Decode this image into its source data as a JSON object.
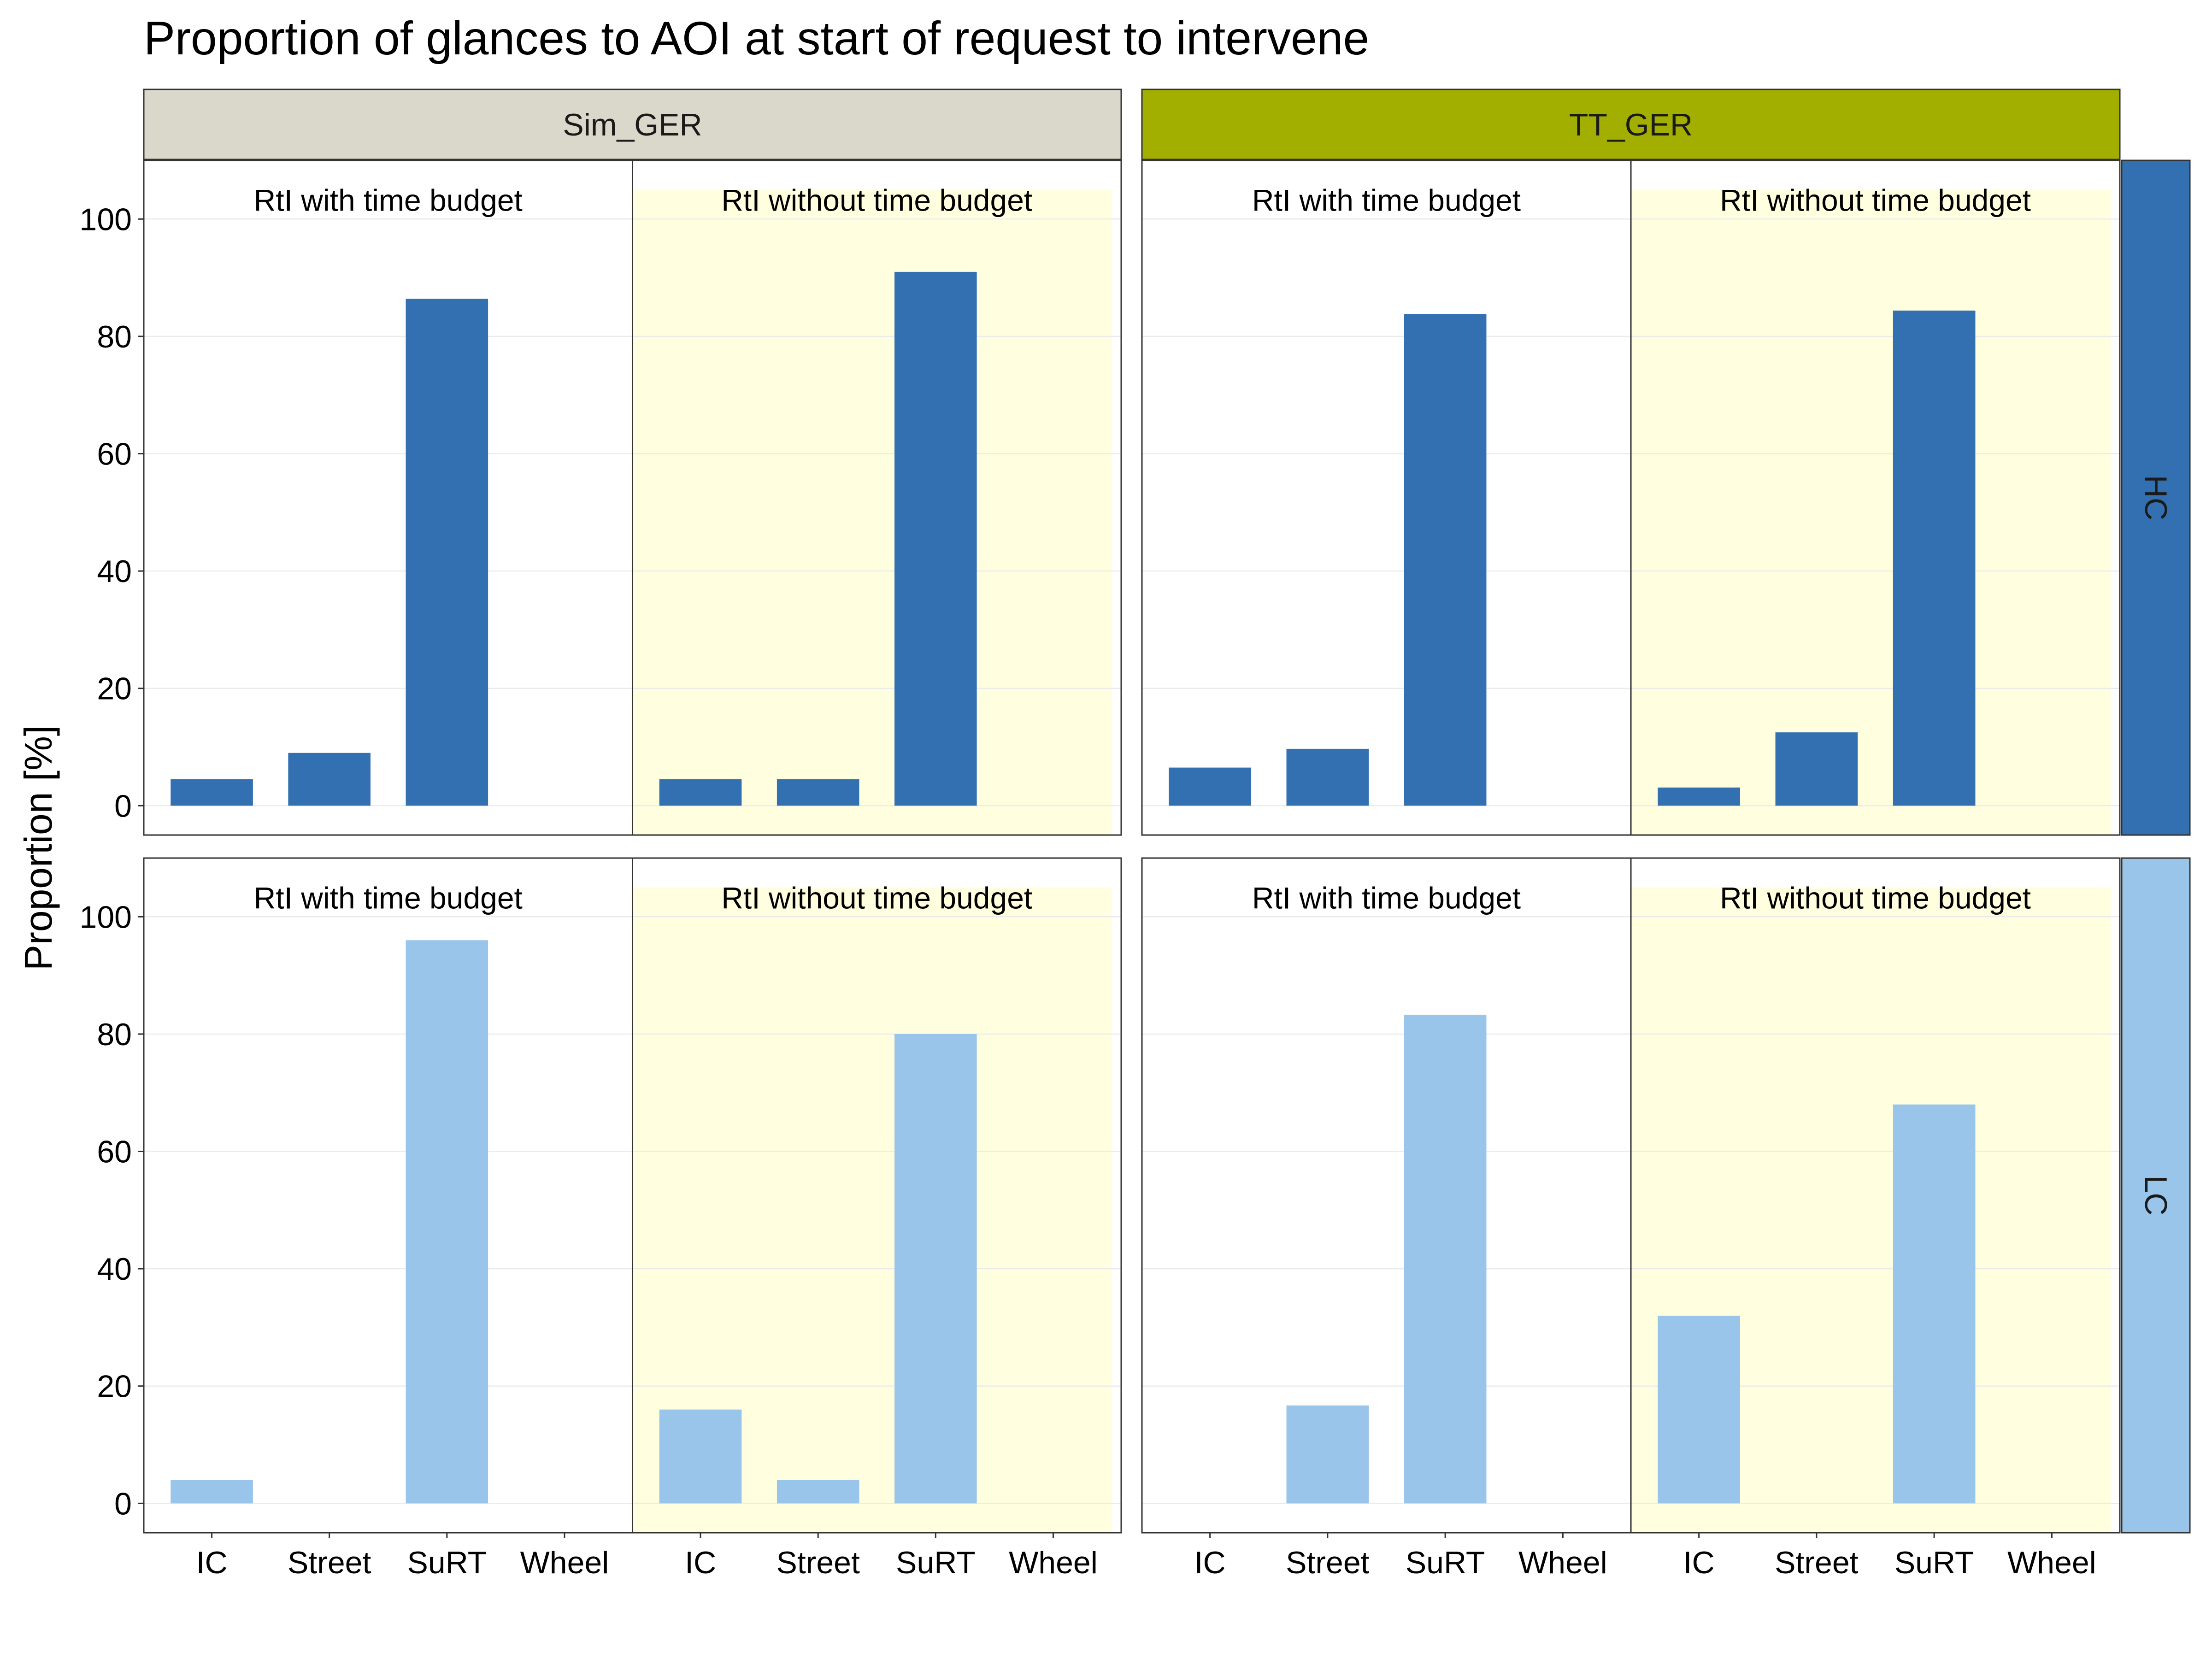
{
  "chart_data": {
    "type": "bar",
    "title": "Proportion of glances to AOI at start of request to intervene",
    "xlabel": "",
    "ylabel": "Proportion [%]",
    "ylim": [
      -5,
      110
    ],
    "yticks": [
      0,
      20,
      40,
      60,
      80,
      100
    ],
    "categories": [
      "IC",
      "Street",
      "SuRT",
      "Wheel"
    ],
    "column_facets": [
      {
        "label": "Sim_GER",
        "color": "#d9d8cb"
      },
      {
        "label": "TT_GER",
        "color": "#a2ae00"
      }
    ],
    "row_facets": [
      {
        "label": "HC",
        "color": "#3370b2"
      },
      {
        "label": "LC",
        "color": "#9ac5ea"
      }
    ],
    "subgroups": [
      "RtI with time budget",
      "RtI without time budget"
    ],
    "highlight_color": "#ffffdf",
    "panels": [
      {
        "row": "HC",
        "column": "Sim_GER",
        "series": [
          {
            "subgroup": "RtI with time budget",
            "values": [
              4.5,
              9,
              86.4,
              0
            ]
          },
          {
            "subgroup": "RtI without time budget",
            "values": [
              4.5,
              4.5,
              91,
              0
            ]
          }
        ]
      },
      {
        "row": "HC",
        "column": "TT_GER",
        "series": [
          {
            "subgroup": "RtI with time budget",
            "values": [
              6.5,
              9.7,
              83.8,
              0
            ]
          },
          {
            "subgroup": "RtI without time budget",
            "values": [
              3.1,
              12.5,
              84.4,
              0
            ]
          }
        ]
      },
      {
        "row": "LC",
        "column": "Sim_GER",
        "series": [
          {
            "subgroup": "RtI with time budget",
            "values": [
              4,
              0,
              96,
              0
            ]
          },
          {
            "subgroup": "RtI without time budget",
            "values": [
              16,
              4,
              80,
              0
            ]
          }
        ]
      },
      {
        "row": "LC",
        "column": "TT_GER",
        "series": [
          {
            "subgroup": "RtI with time budget",
            "values": [
              0,
              16.7,
              83.3,
              0
            ]
          },
          {
            "subgroup": "RtI without time budget",
            "values": [
              32,
              0,
              68,
              0
            ]
          }
        ]
      }
    ]
  }
}
